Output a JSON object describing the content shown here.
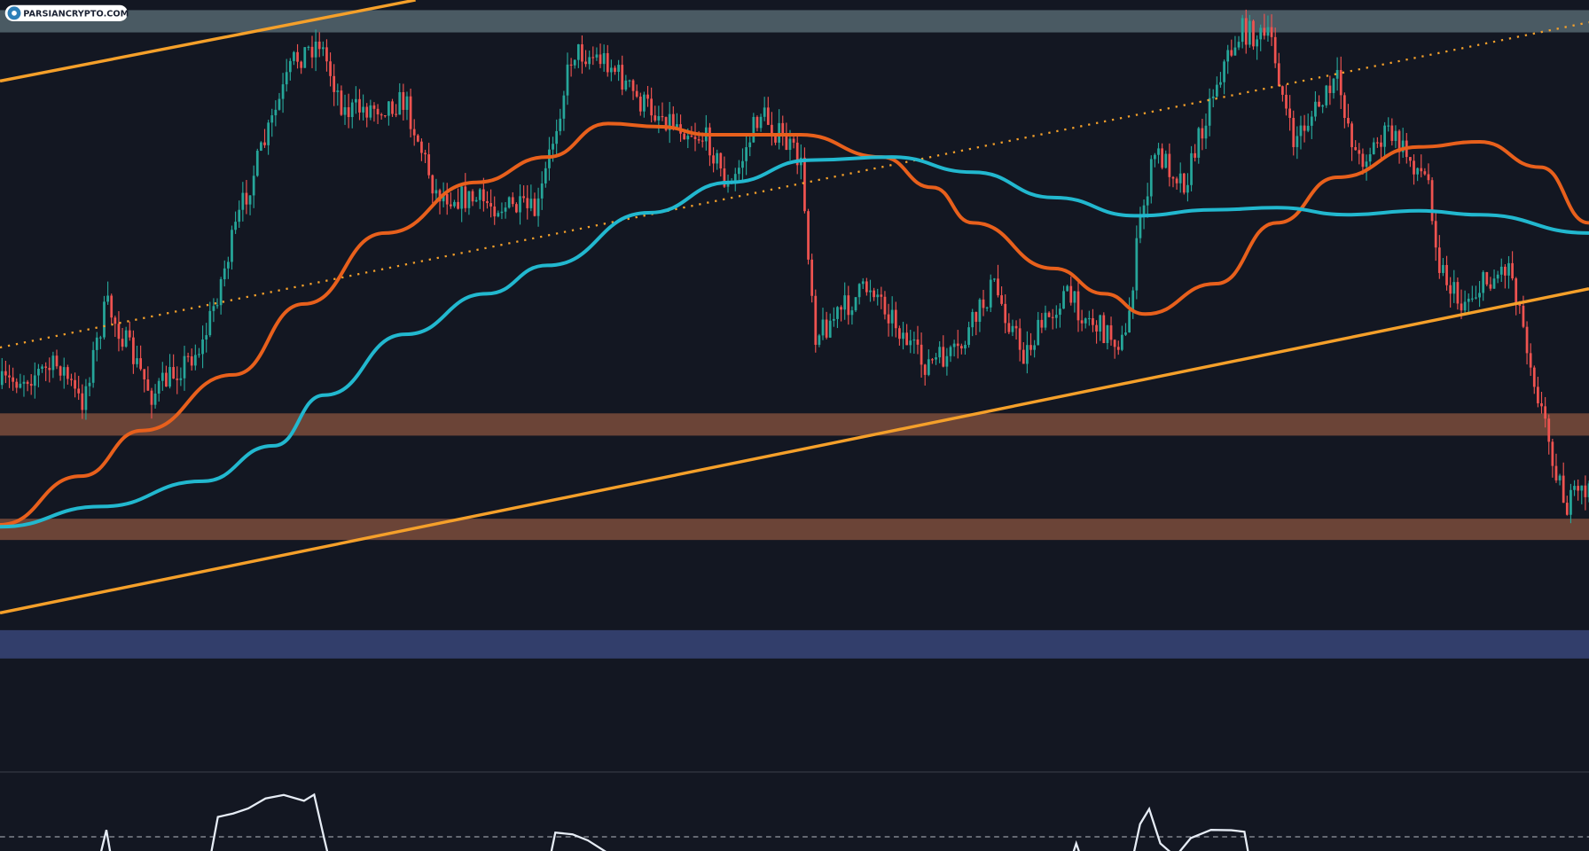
{
  "watermark": {
    "text": "PARSIANCRYPTO.COM"
  }
}
